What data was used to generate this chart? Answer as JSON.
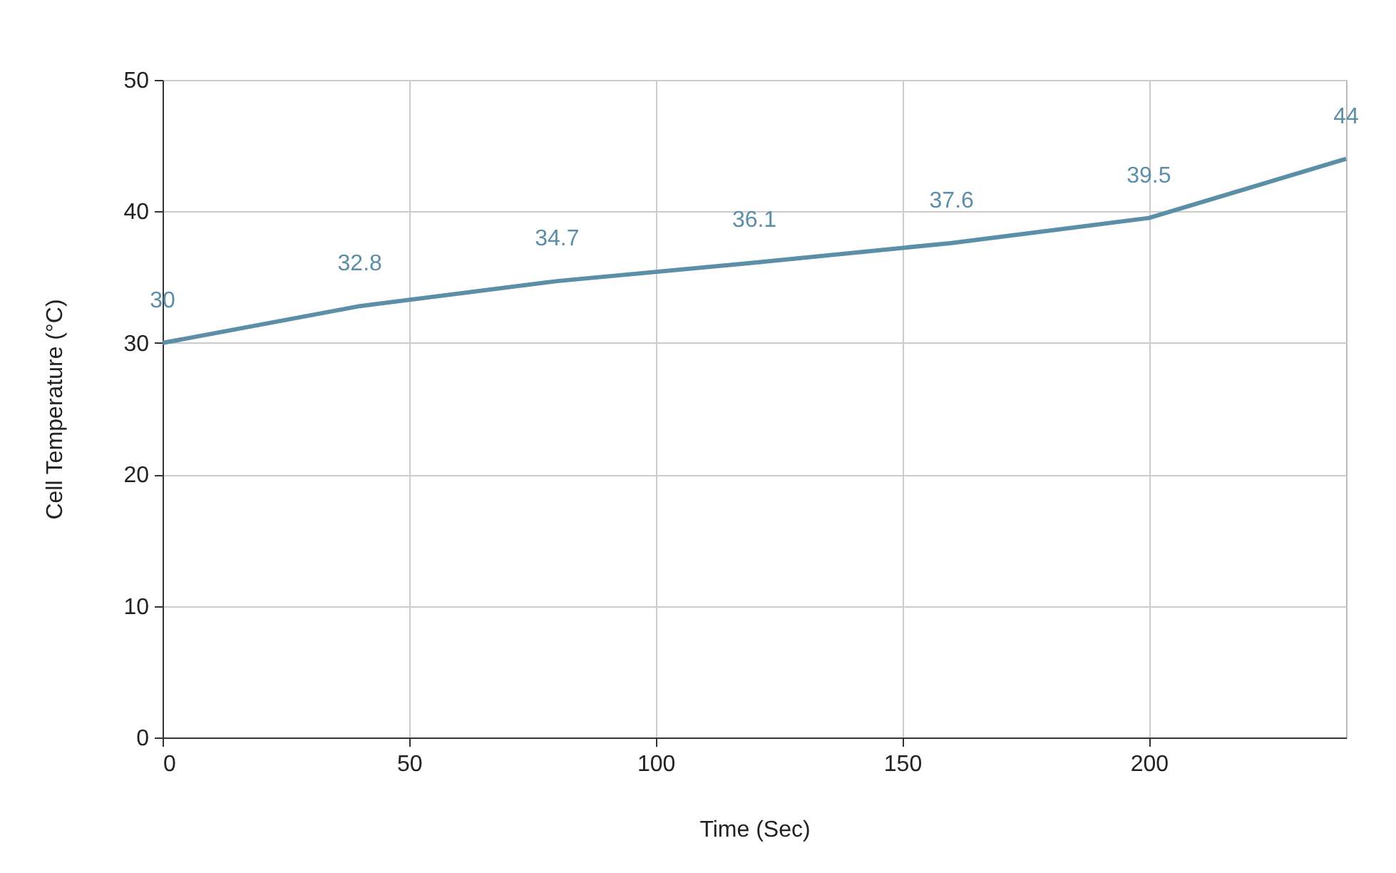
{
  "chart_data": {
    "type": "line",
    "xlabel": "Time (Sec)",
    "ylabel": "Cell Temperature (°C)",
    "x": [
      0,
      40,
      80,
      120,
      160,
      200,
      240
    ],
    "series": [
      {
        "color": "#5b8fa8",
        "values": [
          30,
          32.8,
          34.7,
          36.1,
          37.6,
          39.5,
          44
        ]
      }
    ],
    "xlim": [
      0,
      240
    ],
    "xticks": [
      0,
      50,
      100,
      150,
      200
    ],
    "ylim": [
      0,
      50
    ],
    "yticks": [
      0,
      10,
      20,
      30,
      40,
      50
    ],
    "grid": true,
    "data_labels": true,
    "marker": "none",
    "line_style": "solid"
  }
}
